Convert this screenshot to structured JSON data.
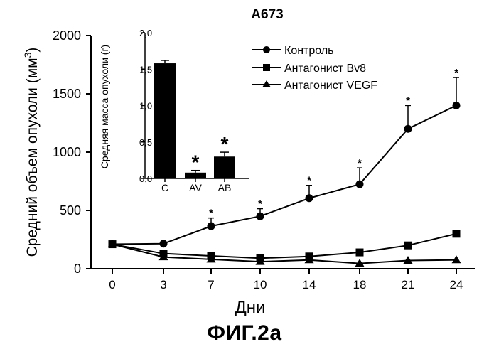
{
  "figure_caption": "ФИГ.2a",
  "chart_data": [
    {
      "type": "line",
      "title": "A673",
      "xlabel": "Дни",
      "ylabel": "Средний объем опухоли (мм",
      "ylabel_superscript": "3",
      "ylabel_tail": ")",
      "x": [
        0,
        3,
        7,
        10,
        14,
        18,
        21,
        24
      ],
      "x_tick_labels": [
        "0",
        "3",
        "7",
        "10",
        "14",
        "18",
        "21",
        "24"
      ],
      "ylim": [
        0,
        2000
      ],
      "y_ticks": [
        0,
        500,
        1000,
        1500,
        2000
      ],
      "grid": false,
      "legend_position": "top-right",
      "series": [
        {
          "name": "Контроль",
          "marker": "circle",
          "values": [
            210,
            215,
            365,
            450,
            605,
            725,
            1200,
            1400
          ],
          "error_plus": [
            0,
            0,
            70,
            65,
            110,
            140,
            200,
            240
          ],
          "significant": [
            false,
            false,
            true,
            true,
            true,
            true,
            true,
            true
          ]
        },
        {
          "name": "Антагонист Bv8",
          "marker": "square",
          "values": [
            210,
            130,
            110,
            90,
            105,
            140,
            200,
            300
          ]
        },
        {
          "name": "Антагонист VEGF",
          "marker": "triangle",
          "values": [
            210,
            100,
            80,
            60,
            75,
            45,
            70,
            75
          ]
        }
      ],
      "significance_marker": "*"
    },
    {
      "type": "bar",
      "ylabel": "Средняя масса опухоли (г)",
      "categories": [
        "C",
        "AV",
        "AB"
      ],
      "values": [
        1.58,
        0.08,
        0.3
      ],
      "error_plus": [
        0.04,
        0.03,
        0.06
      ],
      "significant": [
        false,
        true,
        true
      ],
      "ylim": [
        0,
        2.0
      ],
      "y_ticks": [
        0,
        0.5,
        1.0,
        1.5,
        2.0
      ],
      "y_tick_labels": [
        "0,0",
        "0,5",
        "1,0",
        "1,5",
        "2,0"
      ],
      "significance_marker": "*"
    }
  ]
}
